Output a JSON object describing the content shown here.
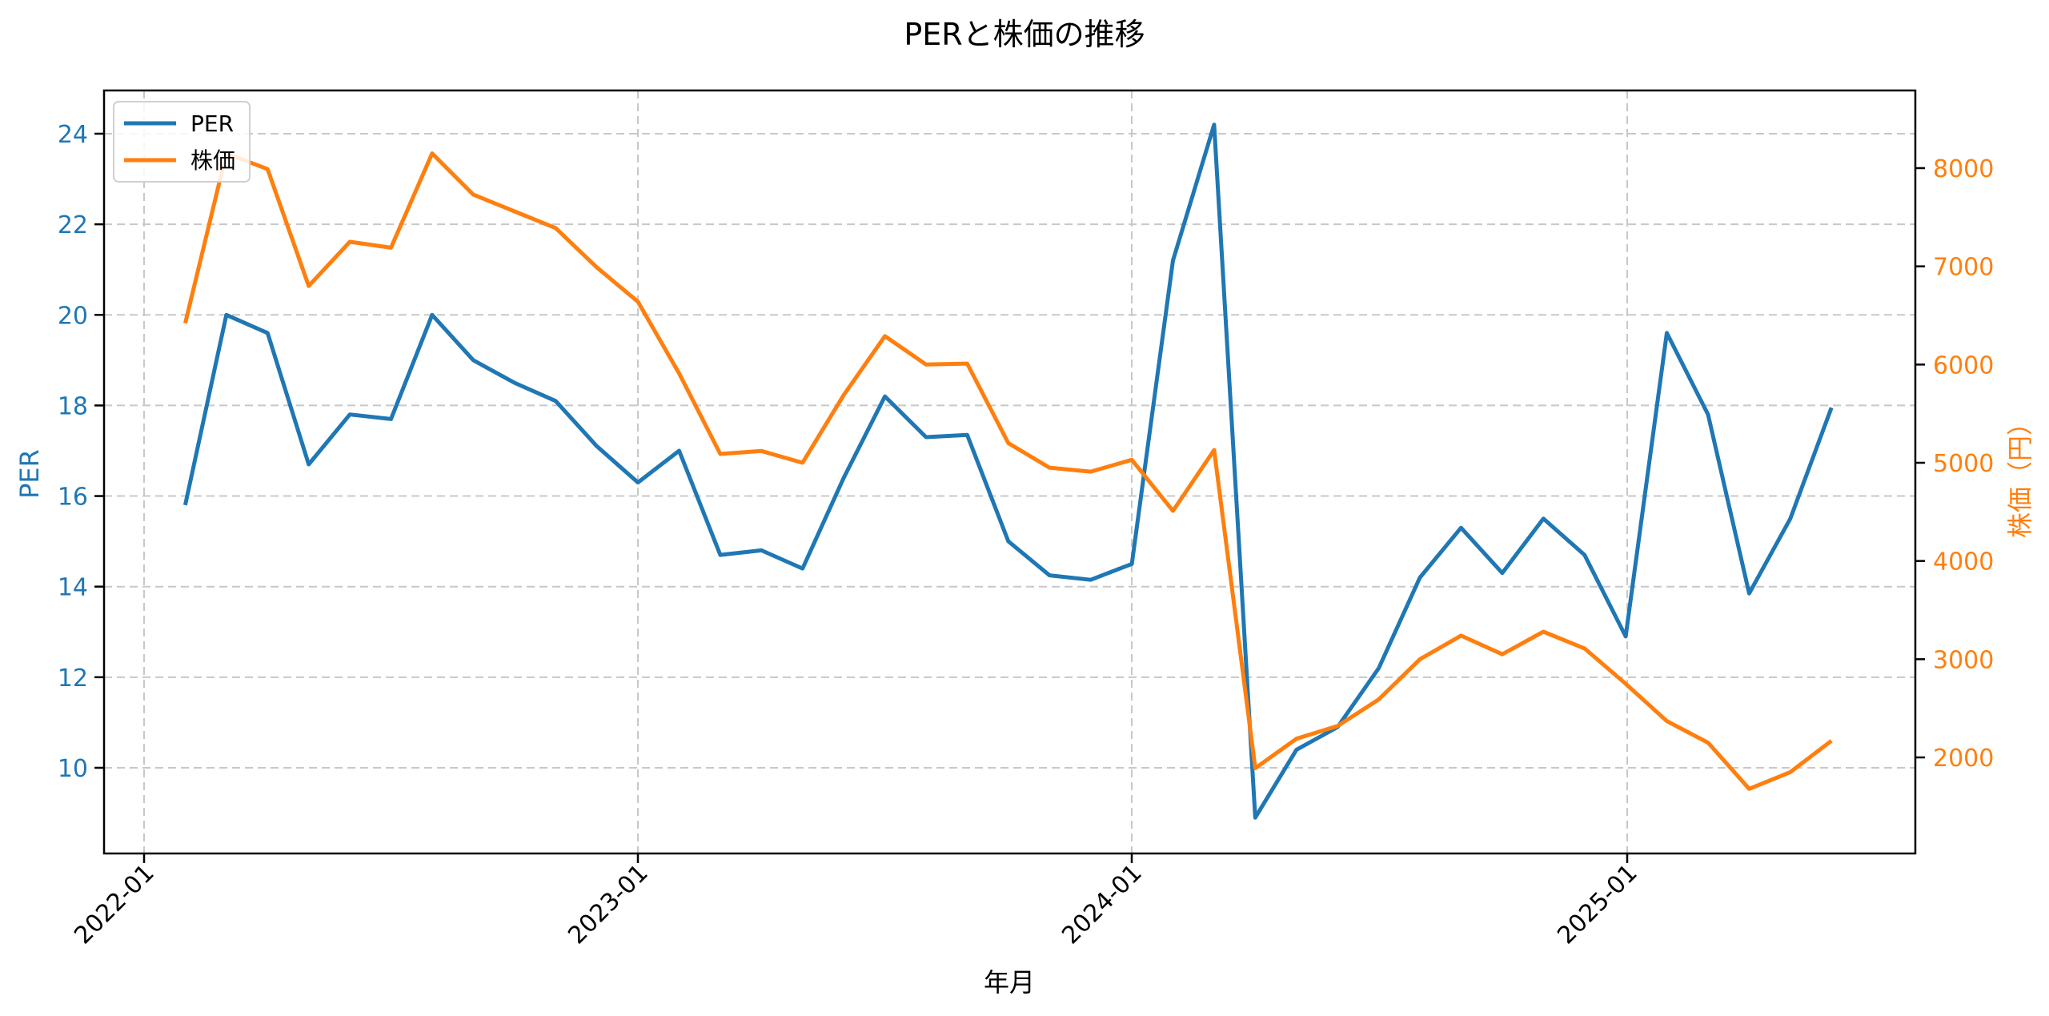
{
  "chart_data": {
    "type": "line",
    "title": "PERと株価の推移",
    "xlabel": "年月",
    "ylabel": "PER",
    "y2label": "株価（円）",
    "x": [
      "2022-02",
      "2022-03",
      "2022-04",
      "2022-05",
      "2022-06",
      "2022-07",
      "2022-08",
      "2022-09",
      "2022-10",
      "2022-11",
      "2022-12",
      "2023-01",
      "2023-02",
      "2023-03",
      "2023-04",
      "2023-05",
      "2023-06",
      "2023-07",
      "2023-08",
      "2023-09",
      "2023-10",
      "2023-11",
      "2023-12",
      "2024-01",
      "2024-02",
      "2024-03",
      "2024-04",
      "2024-05",
      "2024-06",
      "2024-07",
      "2024-08",
      "2024-09",
      "2024-10",
      "2024-11",
      "2024-12",
      "2025-01",
      "2025-02",
      "2025-03",
      "2025-04",
      "2025-05",
      "2025-06"
    ],
    "x_ticks": [
      "2022-01",
      "2023-01",
      "2024-01",
      "2025-01"
    ],
    "series": [
      {
        "name": "PER",
        "axis": "left",
        "color": "#1f77b4",
        "values": [
          15.8,
          20.0,
          19.6,
          16.7,
          17.8,
          17.7,
          20.0,
          19.0,
          18.5,
          18.1,
          17.1,
          16.3,
          17.0,
          14.7,
          14.8,
          14.4,
          16.4,
          18.2,
          17.3,
          17.35,
          15.0,
          14.25,
          14.15,
          14.5,
          21.2,
          24.2,
          8.9,
          10.4,
          10.9,
          12.2,
          14.2,
          15.3,
          14.3,
          15.5,
          14.7,
          12.9,
          19.6,
          17.8,
          13.85,
          15.5,
          17.95
        ]
      },
      {
        "name": "株価",
        "axis": "right",
        "color": "#ff7f0e",
        "values": [
          6420,
          8150,
          7990,
          6800,
          7250,
          7190,
          8150,
          7730,
          7560,
          7390,
          6990,
          6640,
          5910,
          5090,
          5120,
          5000,
          5690,
          6290,
          6000,
          6010,
          5200,
          4950,
          4910,
          5030,
          4510,
          5130,
          1890,
          2190,
          2320,
          2590,
          3000,
          3240,
          3050,
          3280,
          3110,
          2750,
          2370,
          2150,
          1680,
          1850,
          2170
        ]
      }
    ],
    "ylim": [
      8.1,
      25.0
    ],
    "y2lim": [
      1300,
      8800
    ],
    "yticks": [
      10,
      12,
      14,
      16,
      18,
      20,
      22,
      24
    ],
    "y2ticks": [
      2000,
      3000,
      4000,
      5000,
      6000,
      7000,
      8000
    ],
    "grid": true,
    "legend_position": "upper left"
  }
}
